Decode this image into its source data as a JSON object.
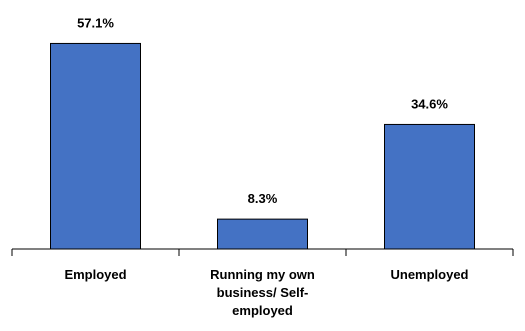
{
  "chart_data": {
    "type": "bar",
    "categories": [
      [
        "Employed"
      ],
      [
        "Running my own",
        "business/ Self-",
        "employed"
      ],
      [
        "Unemployed"
      ]
    ],
    "values": [
      57.1,
      8.3,
      34.6
    ],
    "value_labels": [
      "57.1%",
      "8.3%",
      "34.6%"
    ],
    "ylim": [
      0,
      60
    ],
    "grid": false,
    "legend": "none",
    "bar_color": "#4472C4"
  }
}
